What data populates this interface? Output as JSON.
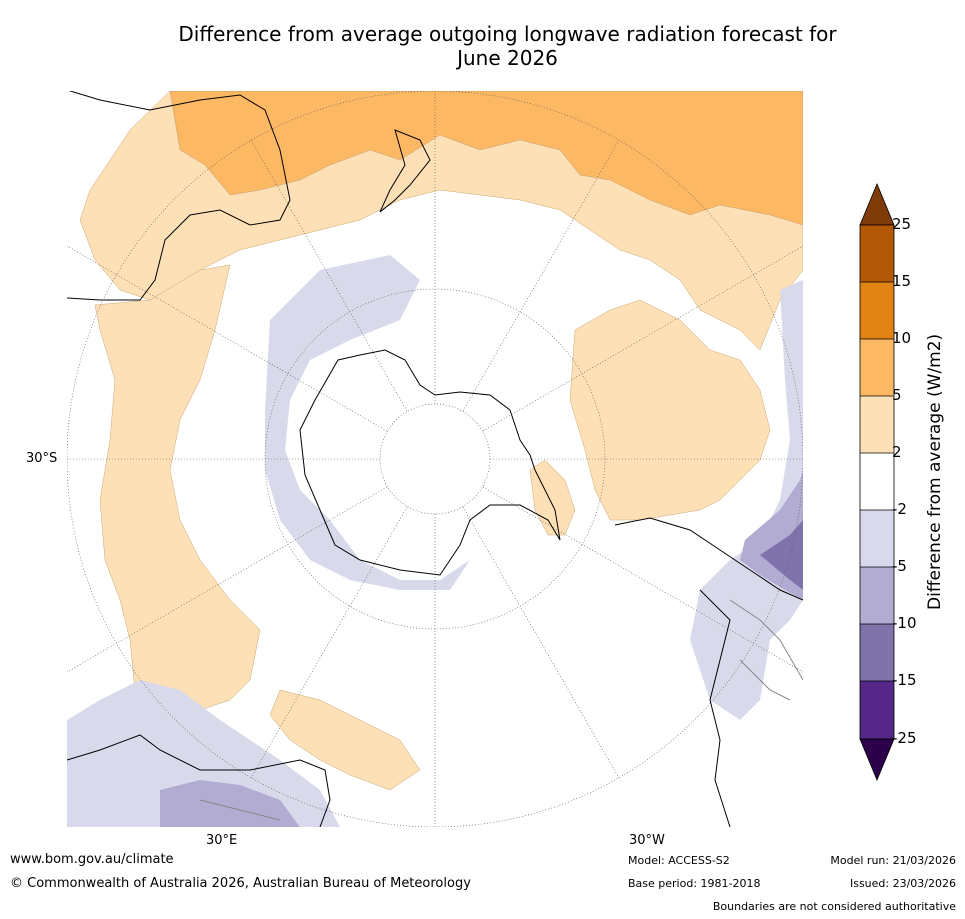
{
  "title": {
    "line1": "Difference from average outgoing longwave radiation forecast for",
    "line2": "June 2026"
  },
  "map": {
    "projection": "south-polar-stereographic",
    "lat_labels": [
      "30°S"
    ],
    "lon_labels": [
      "30°E",
      "30°W"
    ],
    "regions_shown": [
      "Antarctica",
      "Australia",
      "New Zealand",
      "South America",
      "Southern Africa"
    ]
  },
  "colorbar": {
    "title": "Difference from average (W/m2)",
    "ticks": [
      "25",
      "15",
      "10",
      "5",
      "2",
      "-2",
      "-5",
      "-10",
      "-15",
      "-25"
    ],
    "colors": {
      "over": "#7f3b08",
      "b15_25": "#b35806",
      "b10_15": "#e08214",
      "b5_10": "#fdb863",
      "b2_5": "#fee0b6",
      "neutral": "#ffffff",
      "bm2_m5": "#d8daeb",
      "bm5_m10": "#b2abd2",
      "bm10_m15": "#8073ac",
      "bm15_m25": "#542788",
      "under": "#2d004b"
    }
  },
  "footer": {
    "website": "www.bom.gov.au/climate",
    "copyright": "© Commonwealth of Australia 2026, Australian Bureau of Meteorology",
    "model": "Model: ACCESS-S2",
    "base_period": "Base period: 1981-2018",
    "model_run": "Model run: 21/03/2026",
    "issued": "Issued: 23/03/2026",
    "disclaimer": "Boundaries are not considered authoritative"
  }
}
